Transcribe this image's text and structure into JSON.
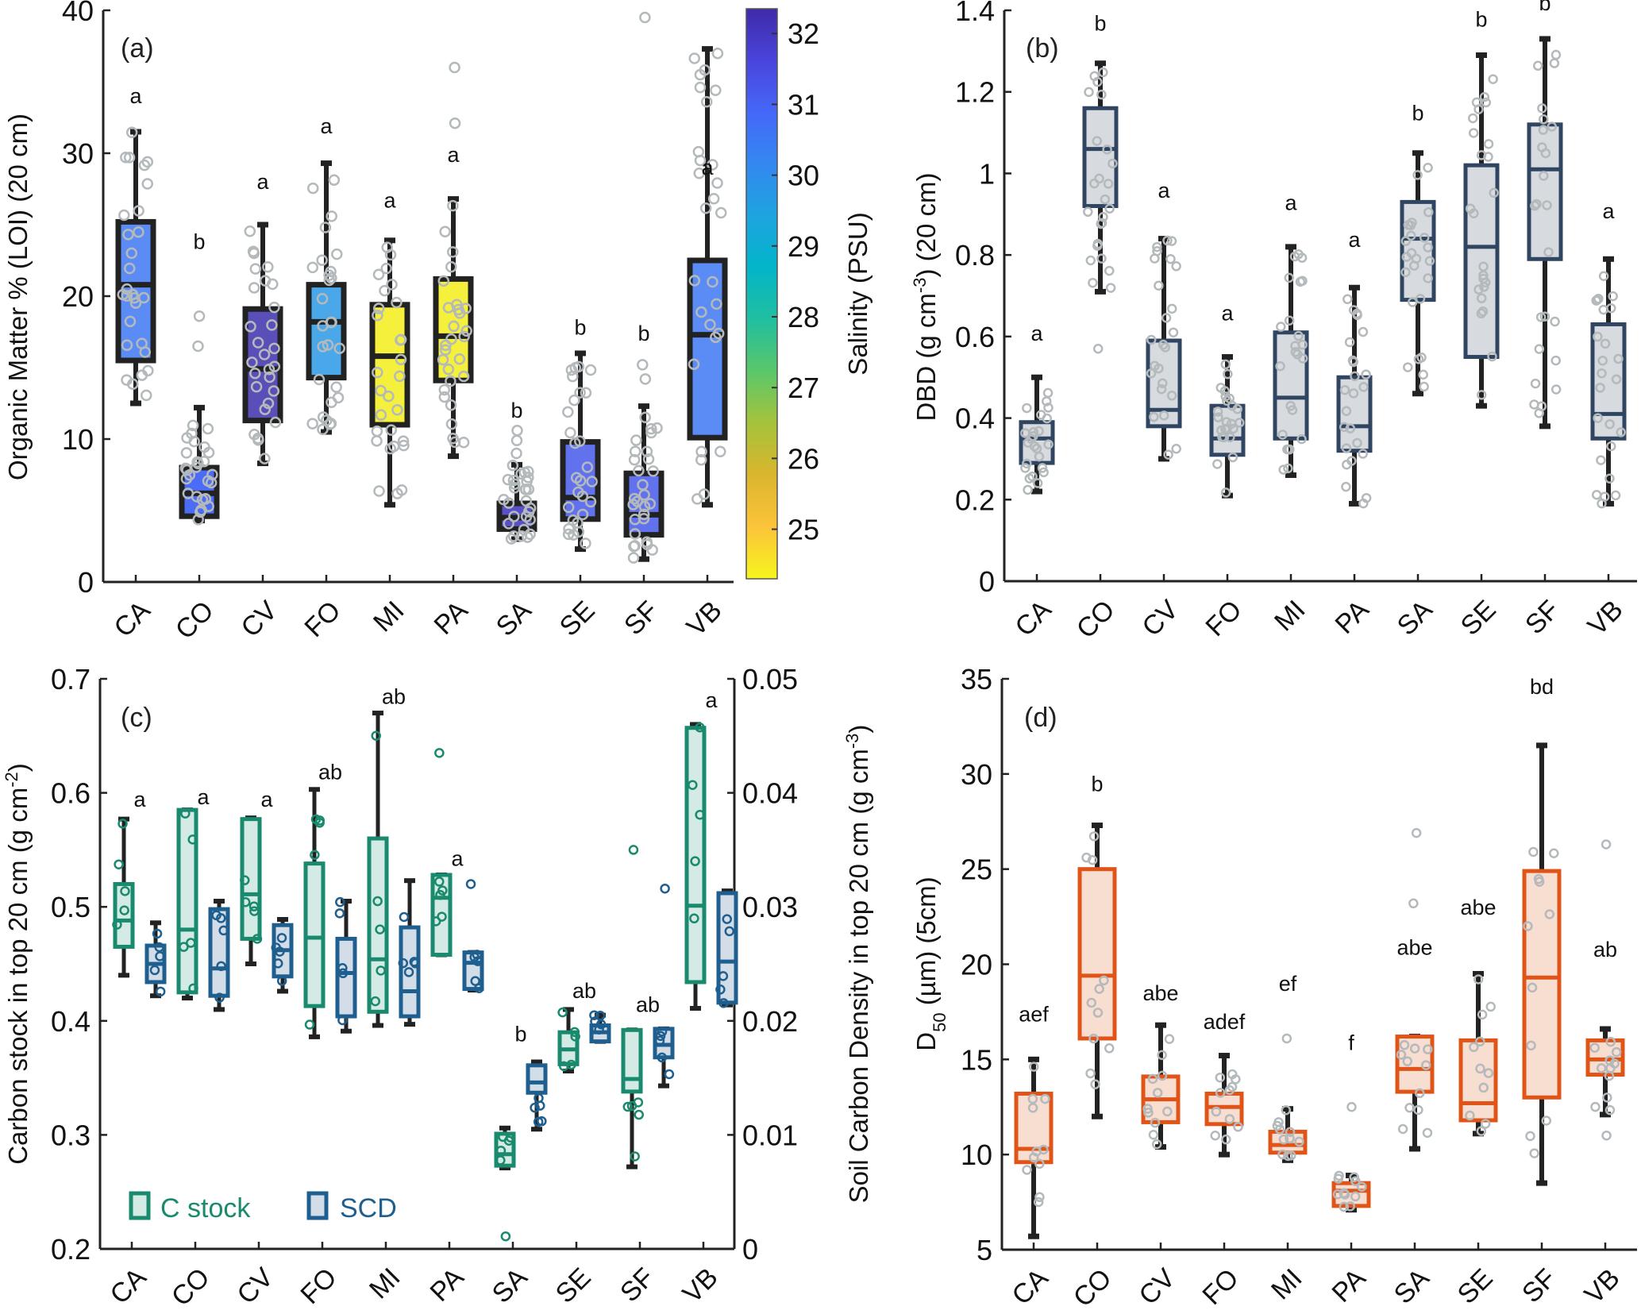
{
  "figure": {
    "categories": [
      "CA",
      "CO",
      "CV",
      "FO",
      "MI",
      "PA",
      "SA",
      "SE",
      "SF",
      "VB"
    ]
  },
  "chart_data": [
    {
      "id": "a",
      "type": "box",
      "panel_tag": "(a)",
      "ylabel": "Organic Matter % (LOI) (20 cm)",
      "xlabel": "",
      "ylim": [
        0,
        40
      ],
      "yticks": [
        0,
        10,
        20,
        30,
        40
      ],
      "grid": false,
      "box_edge_color": "#222222",
      "point_color": "#b4b9bb",
      "colorbar": {
        "label": "Salinity (PSU)",
        "range": [
          24.3,
          32.35
        ],
        "ticks": [
          25,
          26,
          27,
          28,
          29,
          30,
          31,
          32
        ],
        "colormap": [
          "#f6f51d",
          "#fcc43a",
          "#dbb52e",
          "#a5c33a",
          "#5ac76a",
          "#21bfa0",
          "#02b5c8",
          "#1ea4e0",
          "#3388f0",
          "#4468f8",
          "#4a44dc",
          "#3f2aa8"
        ],
        "placement": "right"
      },
      "boxes": [
        {
          "category": "CA",
          "whisker_high": 31.5,
          "q3": 25.2,
          "median": 20.8,
          "q1": 15.5,
          "whisker_low": 12.5,
          "outliers": [],
          "salinity": 30.8,
          "fill": "#5b8cf5",
          "letter": "a",
          "letter_y": 33.5
        },
        {
          "category": "CO",
          "whisker_high": 12.2,
          "q3": 8.0,
          "median": 6.2,
          "q1": 4.6,
          "whisker_low": 4.3,
          "outliers": [
            18.6,
            16.5
          ],
          "salinity": 31.3,
          "fill": "#4a6cf6",
          "letter": "b",
          "letter_y": 23.3
        },
        {
          "category": "CV",
          "whisker_high": 25.0,
          "q3": 19.1,
          "median": 14.9,
          "q1": 11.3,
          "whisker_low": 8.3,
          "outliers": [],
          "salinity": 32.1,
          "fill": "#5a4fb8",
          "letter": "a",
          "letter_y": 27.5
        },
        {
          "category": "FO",
          "whisker_high": 29.3,
          "q3": 20.8,
          "median": 18.2,
          "q1": 14.3,
          "whisker_low": 10.5,
          "outliers": [],
          "salinity": 29.9,
          "fill": "#4aa8ea",
          "letter": "a",
          "letter_y": 31.4
        },
        {
          "category": "MI",
          "whisker_high": 23.9,
          "q3": 19.4,
          "median": 15.8,
          "q1": 11.0,
          "whisker_low": 5.4,
          "outliers": [],
          "salinity": 24.6,
          "fill": "#f5f03c",
          "letter": "a",
          "letter_y": 26.2
        },
        {
          "category": "PA",
          "whisker_high": 26.8,
          "q3": 21.2,
          "median": 17.2,
          "q1": 14.1,
          "whisker_low": 8.8,
          "outliers": [
            36.0,
            32.1
          ],
          "salinity": 24.6,
          "fill": "#f5f03c",
          "letter": "a",
          "letter_y": 29.4
        },
        {
          "category": "SA",
          "whisker_high": 8.2,
          "q3": 5.5,
          "median": 4.5,
          "q1": 3.7,
          "whisker_low": 3.0,
          "outliers": [
            10.6,
            9.9,
            9.0
          ],
          "salinity": 32.0,
          "fill": "#5a50c8",
          "letter": "b",
          "letter_y": 11.5
        },
        {
          "category": "SE",
          "whisker_high": 16.0,
          "q3": 9.8,
          "median": 5.9,
          "q1": 4.4,
          "whisker_low": 2.3,
          "outliers": [],
          "salinity": 31.6,
          "fill": "#6272ee",
          "letter": "b",
          "letter_y": 17.3
        },
        {
          "category": "SF",
          "whisker_high": 12.3,
          "q3": 7.6,
          "median": 4.7,
          "q1": 3.3,
          "whisker_low": 1.6,
          "outliers": [
            15.2,
            14.2,
            39.5
          ],
          "salinity": 31.6,
          "fill": "#6272ee",
          "letter": "b",
          "letter_y": 16.9
        },
        {
          "category": "VB",
          "whisker_high": 37.3,
          "q3": 22.5,
          "median": 17.3,
          "q1": 10.1,
          "whisker_low": 5.4,
          "outliers": [],
          "salinity": 30.8,
          "fill": "#5b8cf5",
          "letter": "a",
          "letter_y": 28.5
        }
      ]
    },
    {
      "id": "b",
      "type": "box",
      "panel_tag": "(b)",
      "ylabel": "DBD (g cm",
      "ylabel_sup": "-3",
      "ylabel_tail": ") (20 cm)",
      "ylim": [
        0,
        1.4
      ],
      "yticks": [
        0,
        0.2,
        0.4,
        0.6,
        0.8,
        1,
        1.2,
        1.4
      ],
      "ytick_labels": [
        "0",
        "0.2",
        "0.4",
        "0.6",
        "0.8",
        "1",
        "1.2",
        "1.4"
      ],
      "grid": false,
      "box_edge_color": "#2f4562",
      "box_fill": "#d7dade",
      "point_color": "#b4b9bb",
      "boxes": [
        {
          "category": "CA",
          "whisker_high": 0.5,
          "q3": 0.39,
          "median": 0.35,
          "q1": 0.29,
          "whisker_low": 0.22,
          "outliers": [],
          "letter": "a",
          "letter_y": 0.59
        },
        {
          "category": "CO",
          "whisker_high": 1.27,
          "q3": 1.16,
          "median": 1.06,
          "q1": 0.92,
          "whisker_low": 0.71,
          "outliers": [
            0.57
          ],
          "letter": "b",
          "letter_y": 1.35
        },
        {
          "category": "CV",
          "whisker_high": 0.84,
          "q3": 0.59,
          "median": 0.42,
          "q1": 0.38,
          "whisker_low": 0.3,
          "outliers": [],
          "letter": "a",
          "letter_y": 0.94
        },
        {
          "category": "FO",
          "whisker_high": 0.55,
          "q3": 0.43,
          "median": 0.35,
          "q1": 0.31,
          "whisker_low": 0.21,
          "outliers": [],
          "letter": "a",
          "letter_y": 0.64
        },
        {
          "category": "MI",
          "whisker_high": 0.82,
          "q3": 0.61,
          "median": 0.45,
          "q1": 0.35,
          "whisker_low": 0.26,
          "outliers": [],
          "letter": "a",
          "letter_y": 0.91
        },
        {
          "category": "PA",
          "whisker_high": 0.72,
          "q3": 0.5,
          "median": 0.38,
          "q1": 0.32,
          "whisker_low": 0.19,
          "outliers": [],
          "letter": "a",
          "letter_y": 0.82
        },
        {
          "category": "SA",
          "whisker_high": 1.05,
          "q3": 0.93,
          "median": 0.84,
          "q1": 0.69,
          "whisker_low": 0.46,
          "outliers": [],
          "letter": "b",
          "letter_y": 1.13
        },
        {
          "category": "SE",
          "whisker_high": 1.29,
          "q3": 1.02,
          "median": 0.82,
          "q1": 0.55,
          "whisker_low": 0.43,
          "outliers": [],
          "letter": "b",
          "letter_y": 1.36
        },
        {
          "category": "SF",
          "whisker_high": 1.33,
          "q3": 1.12,
          "median": 1.01,
          "q1": 0.79,
          "whisker_low": 0.38,
          "outliers": [],
          "letter": "b",
          "letter_y": 1.4
        },
        {
          "category": "VB",
          "whisker_high": 0.79,
          "q3": 0.63,
          "median": 0.41,
          "q1": 0.35,
          "whisker_low": 0.19,
          "outliers": [],
          "letter": "a",
          "letter_y": 0.89
        }
      ]
    },
    {
      "id": "c",
      "type": "box",
      "panel_tag": "(c)",
      "ylabel": "Carbon stock in top 20 cm (g cm",
      "ylabel_sup": "-2",
      "ylabel_tail": ")",
      "ylim": [
        0.2,
        0.7
      ],
      "yticks": [
        0.2,
        0.3,
        0.4,
        0.5,
        0.6,
        0.7
      ],
      "ytick_labels": [
        "0.2",
        "0.3",
        "0.4",
        "0.5",
        "0.6",
        "0.7"
      ],
      "y2label": "Soil Carbon Density in top 20 cm (g cm",
      "y2label_sup": "-3",
      "y2label_tail": ")",
      "y2lim": [
        0,
        0.05
      ],
      "y2ticks": [
        0,
        0.01,
        0.02,
        0.03,
        0.04,
        0.05
      ],
      "y2tick_labels": [
        "0",
        "0.01",
        "0.02",
        "0.03",
        "0.04",
        "0.05"
      ],
      "grid": false,
      "legend": {
        "placement": "bottom-left",
        "entries": [
          {
            "label": "C stock",
            "edge": "#1a8a6e",
            "fill": "#d3ebe4"
          },
          {
            "label": "SCD",
            "edge": "#1f5f8f",
            "fill": "#d3dde8"
          }
        ]
      },
      "series": [
        {
          "name": "C stock",
          "axis": "left",
          "edge": "#1a8a6e",
          "fill": "#d3ebe4",
          "boxes": [
            {
              "category": "CA",
              "whisker_high": 0.577,
              "q3": 0.52,
              "median": 0.488,
              "q1": 0.465,
              "whisker_low": 0.44,
              "outliers": []
            },
            {
              "category": "CO",
              "whisker_high": 0.585,
              "q3": 0.585,
              "median": 0.48,
              "q1": 0.425,
              "whisker_low": 0.42,
              "outliers": []
            },
            {
              "category": "CV",
              "whisker_high": 0.578,
              "q3": 0.577,
              "median": 0.511,
              "q1": 0.472,
              "whisker_low": 0.45,
              "outliers": []
            },
            {
              "category": "FO",
              "whisker_high": 0.603,
              "q3": 0.538,
              "median": 0.473,
              "q1": 0.413,
              "whisker_low": 0.386,
              "outliers": []
            },
            {
              "category": "MI",
              "whisker_high": 0.67,
              "q3": 0.56,
              "median": 0.454,
              "q1": 0.408,
              "whisker_low": 0.396,
              "outliers": []
            },
            {
              "category": "PA",
              "whisker_high": 0.528,
              "q3": 0.528,
              "median": 0.508,
              "q1": 0.458,
              "whisker_low": 0.458,
              "outliers": [
                0.635
              ]
            },
            {
              "category": "SA",
              "whisker_high": 0.306,
              "q3": 0.301,
              "median": 0.283,
              "q1": 0.273,
              "whisker_low": 0.271,
              "outliers": [
                0.211
              ]
            },
            {
              "category": "SE",
              "whisker_high": 0.41,
              "q3": 0.39,
              "median": 0.375,
              "q1": 0.362,
              "whisker_low": 0.356,
              "outliers": []
            },
            {
              "category": "SF",
              "whisker_high": 0.392,
              "q3": 0.392,
              "median": 0.349,
              "q1": 0.338,
              "whisker_low": 0.272,
              "outliers": [
                0.55
              ]
            },
            {
              "category": "VB",
              "whisker_high": 0.66,
              "q3": 0.657,
              "median": 0.501,
              "q1": 0.434,
              "whisker_low": 0.411,
              "outliers": []
            }
          ]
        },
        {
          "name": "SCD",
          "axis": "right",
          "edge": "#1f5f8f",
          "fill": "#d3dde8",
          "boxes": [
            {
              "category": "CA",
              "whisker_high": 0.0286,
              "q3": 0.0266,
              "median": 0.025,
              "q1": 0.0234,
              "whisker_low": 0.0222,
              "outliers": []
            },
            {
              "category": "CO",
              "whisker_high": 0.0305,
              "q3": 0.0298,
              "median": 0.0246,
              "q1": 0.0222,
              "whisker_low": 0.021,
              "outliers": []
            },
            {
              "category": "CV",
              "whisker_high": 0.0289,
              "q3": 0.0284,
              "median": 0.0262,
              "q1": 0.0239,
              "whisker_low": 0.0226,
              "outliers": []
            },
            {
              "category": "FO",
              "whisker_high": 0.0305,
              "q3": 0.0272,
              "median": 0.0242,
              "q1": 0.0204,
              "whisker_low": 0.0191,
              "outliers": []
            },
            {
              "category": "MI",
              "whisker_high": 0.0323,
              "q3": 0.0282,
              "median": 0.0226,
              "q1": 0.0204,
              "whisker_low": 0.0197,
              "outliers": []
            },
            {
              "category": "PA",
              "whisker_high": 0.026,
              "q3": 0.026,
              "median": 0.0251,
              "q1": 0.0228,
              "whisker_low": 0.0227,
              "outliers": [
                0.032
              ]
            },
            {
              "category": "SA",
              "whisker_high": 0.0164,
              "q3": 0.0161,
              "median": 0.0146,
              "q1": 0.0137,
              "whisker_low": 0.0105,
              "outliers": []
            },
            {
              "category": "SE",
              "whisker_high": 0.0205,
              "q3": 0.0196,
              "median": 0.019,
              "q1": 0.0182,
              "whisker_low": 0.0182,
              "outliers": []
            },
            {
              "category": "SF",
              "whisker_high": 0.0193,
              "q3": 0.0193,
              "median": 0.0179,
              "q1": 0.0168,
              "whisker_low": 0.0143,
              "outliers": [
                0.0316
              ]
            },
            {
              "category": "VB",
              "whisker_high": 0.0314,
              "q3": 0.0312,
              "median": 0.0252,
              "q1": 0.0216,
              "whisker_low": 0.0214,
              "outliers": []
            }
          ]
        }
      ],
      "letters": [
        {
          "category": "CA",
          "letter": "a",
          "y": 0.588
        },
        {
          "category": "CO",
          "letter": "a",
          "y": 0.59
        },
        {
          "category": "CV",
          "letter": "a",
          "y": 0.588
        },
        {
          "category": "FO",
          "letter": "ab",
          "y": 0.612
        },
        {
          "category": "MI",
          "letter": "ab",
          "y": 0.678
        },
        {
          "category": "PA",
          "letter": "a",
          "y": 0.536
        },
        {
          "category": "SA",
          "letter": "b",
          "y": 0.382
        },
        {
          "category": "SE",
          "letter": "ab",
          "y": 0.42
        },
        {
          "category": "SF",
          "letter": "ab",
          "y": 0.408
        },
        {
          "category": "VB",
          "letter": "a",
          "y": 0.675
        }
      ]
    },
    {
      "id": "d",
      "type": "box",
      "panel_tag": "(d)",
      "ylabel": "D",
      "ylabel_sub": "50",
      "ylabel_tail": " (µm) (5cm)",
      "ylim": [
        5,
        35
      ],
      "yticks": [
        5,
        10,
        15,
        20,
        25,
        30,
        35
      ],
      "grid": false,
      "box_edge_color": "#e05418",
      "box_fill": "#f8ddd1",
      "point_color": "#b4b9bb",
      "boxes": [
        {
          "category": "CA",
          "whisker_high": 15.0,
          "q3": 13.2,
          "median": 10.3,
          "q1": 9.6,
          "whisker_low": 5.7,
          "outliers": [],
          "letter": "aef",
          "letter_y": 17.0
        },
        {
          "category": "CO",
          "whisker_high": 27.3,
          "q3": 25.0,
          "median": 19.4,
          "q1": 16.1,
          "whisker_low": 12.0,
          "outliers": [],
          "letter": "b",
          "letter_y": 29.1
        },
        {
          "category": "CV",
          "whisker_high": 16.8,
          "q3": 14.1,
          "median": 12.9,
          "q1": 11.7,
          "whisker_low": 10.4,
          "outliers": [],
          "letter": "abe",
          "letter_y": 18.1
        },
        {
          "category": "FO",
          "whisker_high": 15.2,
          "q3": 13.2,
          "median": 12.5,
          "q1": 11.6,
          "whisker_low": 10.0,
          "outliers": [],
          "letter": "adef",
          "letter_y": 16.6
        },
        {
          "category": "MI",
          "whisker_high": 12.4,
          "q3": 11.2,
          "median": 10.5,
          "q1": 10.1,
          "whisker_low": 9.7,
          "outliers": [
            16.1
          ],
          "letter": "ef",
          "letter_y": 18.6
        },
        {
          "category": "PA",
          "whisker_high": 8.9,
          "q3": 8.5,
          "median": 8.1,
          "q1": 7.3,
          "whisker_low": 7.1,
          "outliers": [
            12.5
          ],
          "letter": "f",
          "letter_y": 15.5
        },
        {
          "category": "SA",
          "whisker_high": 16.2,
          "q3": 16.2,
          "median": 14.5,
          "q1": 13.3,
          "whisker_low": 10.3,
          "outliers": [
            26.9,
            23.2
          ],
          "letter": "abe",
          "letter_y": 20.5
        },
        {
          "category": "SE",
          "whisker_high": 19.5,
          "q3": 16.0,
          "median": 12.7,
          "q1": 11.8,
          "whisker_low": 11.1,
          "outliers": [],
          "letter": "abe",
          "letter_y": 22.6
        },
        {
          "category": "SF",
          "whisker_high": 31.5,
          "q3": 24.9,
          "median": 19.3,
          "q1": 13.0,
          "whisker_low": 8.5,
          "outliers": [],
          "letter": "bd",
          "letter_y": 34.2
        },
        {
          "category": "VB",
          "whisker_high": 16.6,
          "q3": 16.0,
          "median": 15.0,
          "q1": 14.2,
          "whisker_low": 12.1,
          "outliers": [
            26.3,
            11.0
          ],
          "letter": "ab",
          "letter_y": 20.4
        }
      ]
    }
  ]
}
